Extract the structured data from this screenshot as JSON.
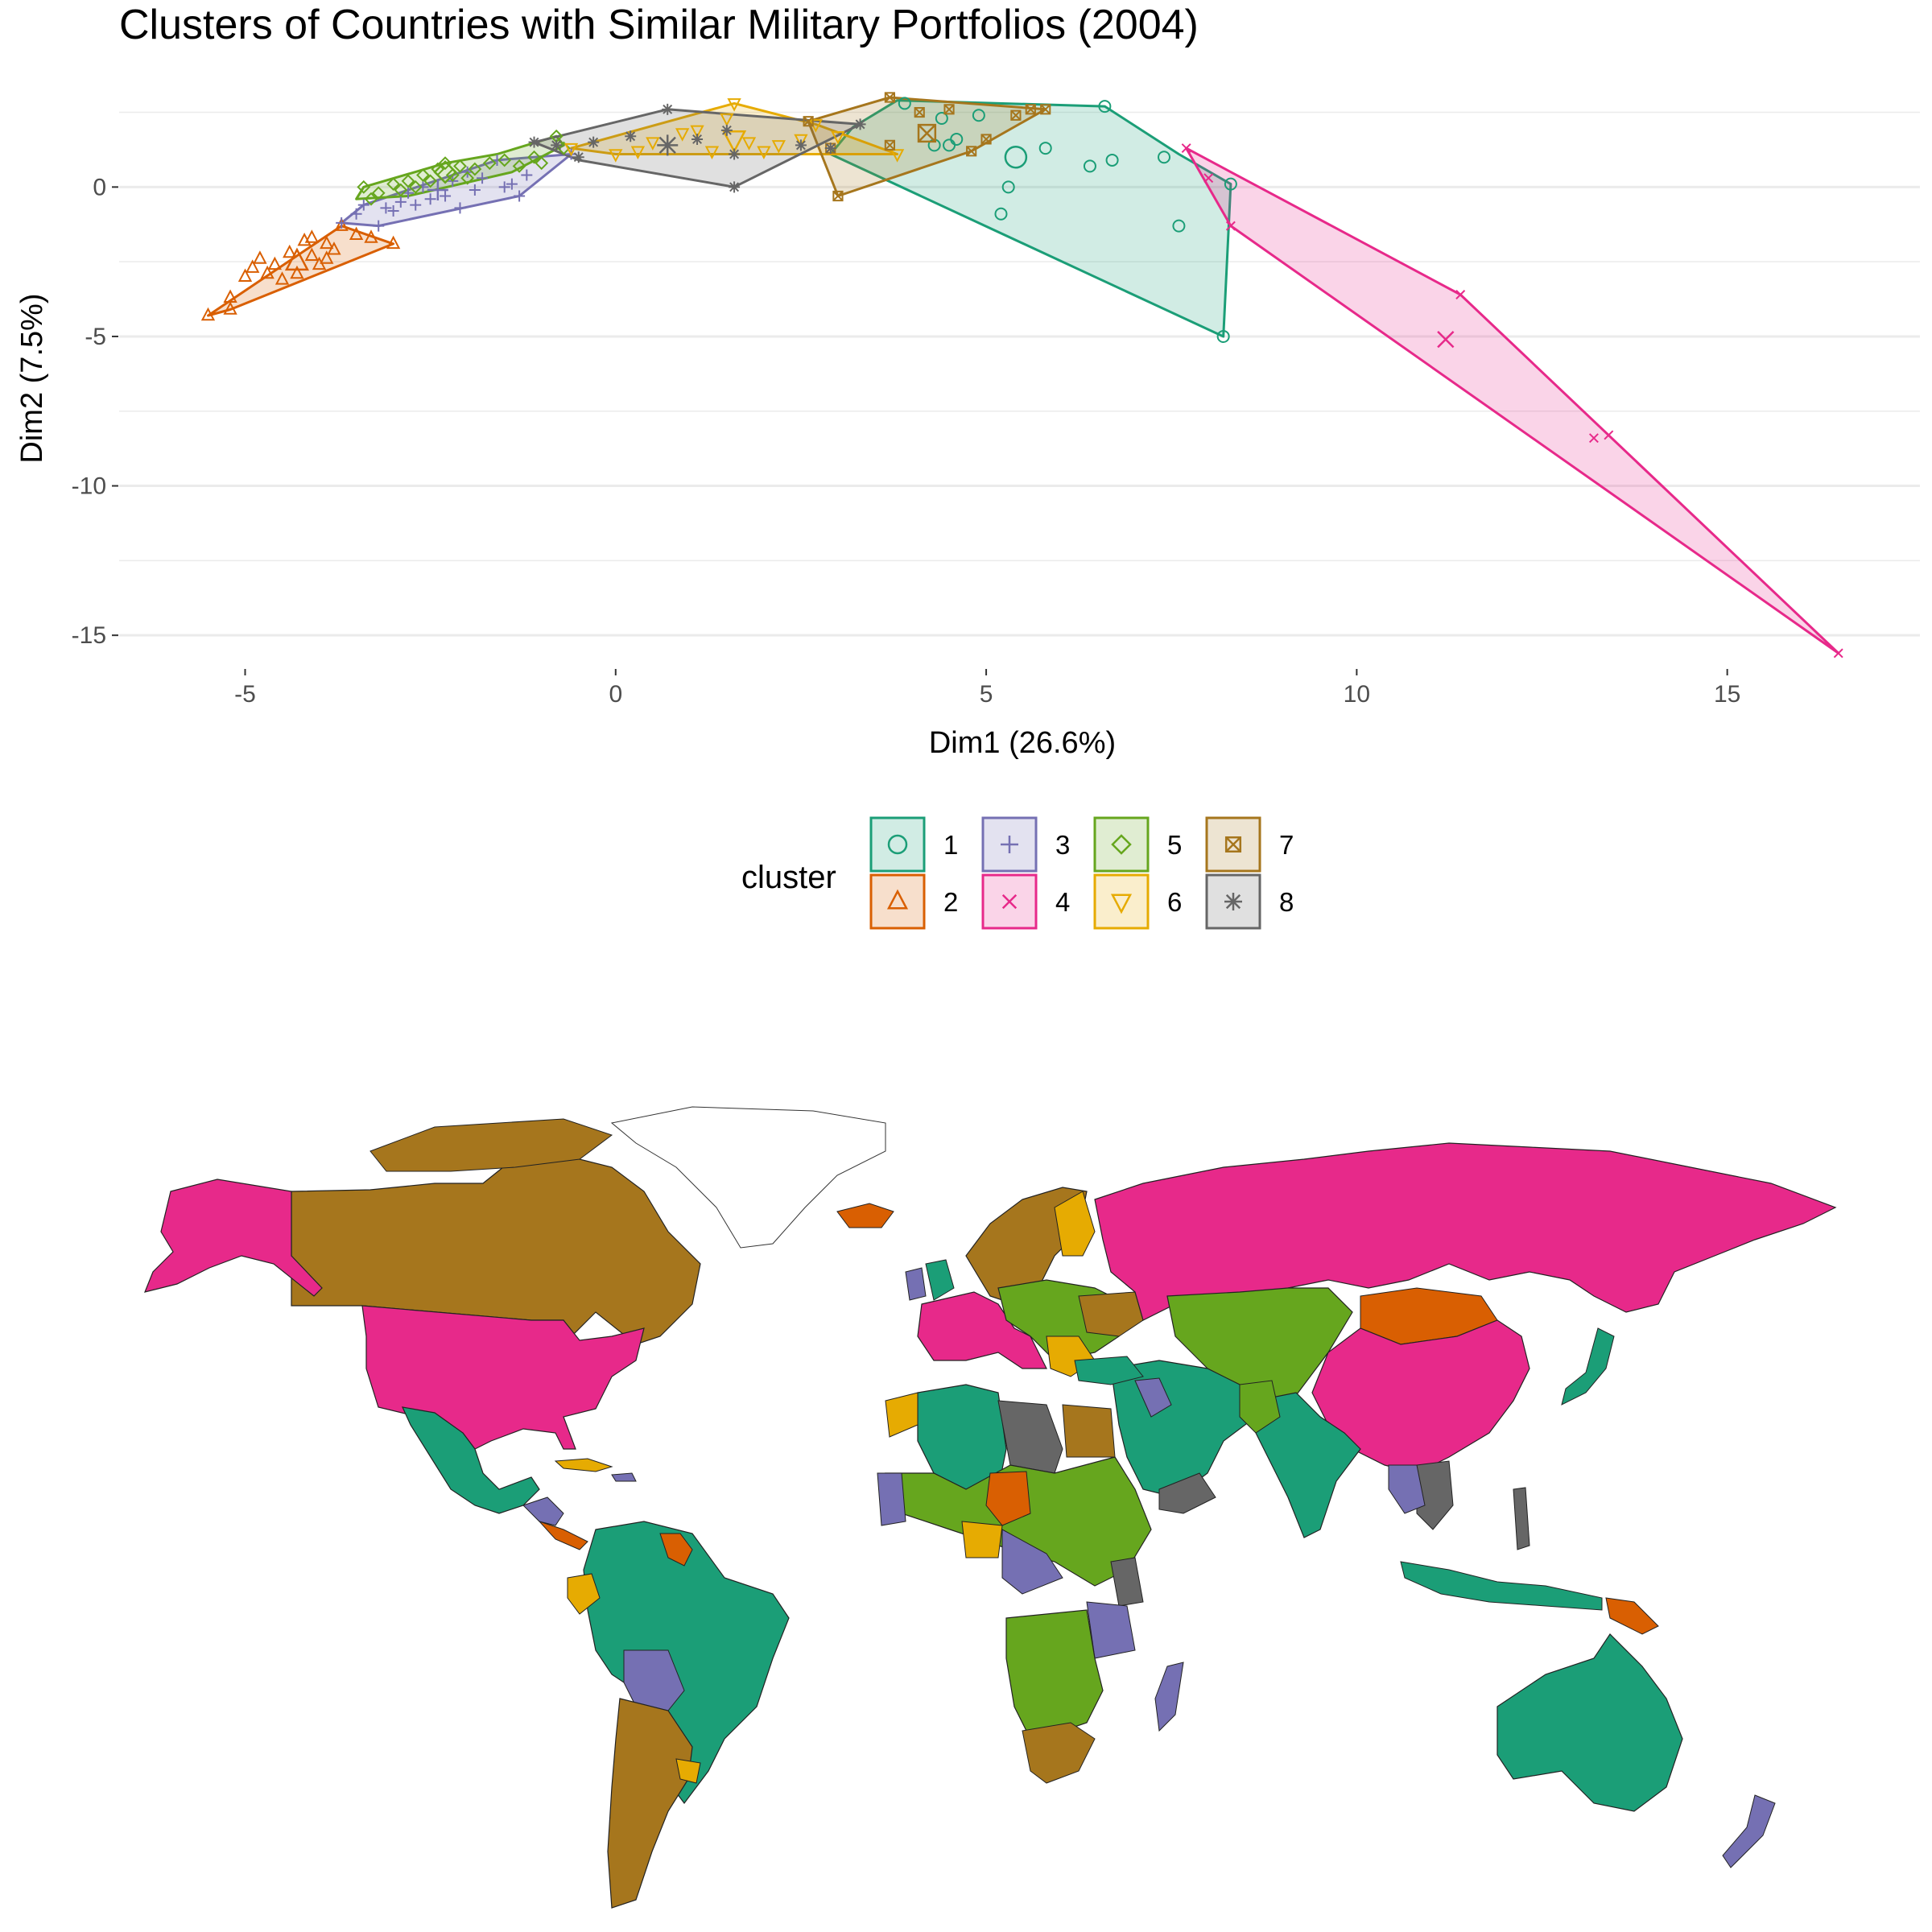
{
  "colors": {
    "1": "#1b9e77",
    "2": "#d95f02",
    "3": "#7570b3",
    "4": "#e7298a",
    "5": "#66a61e",
    "6": "#e6ab02",
    "7": "#a6761d",
    "8": "#666666"
  },
  "chart_data": [
    {
      "type": "scatter",
      "title": "Clusters of Countries with Similar Military Portfolios (2004)",
      "xlabel": "Dim1 (26.6%)",
      "ylabel": "Dim2 (7.5%)",
      "xlim": [
        -6.7,
        17.6
      ],
      "ylim": [
        -16.1,
        3.7
      ],
      "xticks": [
        -5,
        0,
        5,
        10,
        15
      ],
      "yticks": [
        0,
        -5,
        -10,
        -15
      ],
      "grid": true,
      "legend": {
        "title": "cluster",
        "position": "bottom",
        "entries": [
          {
            "label": "1",
            "cluster": "1",
            "shape": "circle"
          },
          {
            "label": "2",
            "cluster": "2",
            "shape": "triangle-up"
          },
          {
            "label": "3",
            "cluster": "3",
            "shape": "plus"
          },
          {
            "label": "4",
            "cluster": "4",
            "shape": "cross"
          },
          {
            "label": "5",
            "cluster": "5",
            "shape": "diamond"
          },
          {
            "label": "6",
            "cluster": "6",
            "shape": "triangle-down"
          },
          {
            "label": "7",
            "cluster": "7",
            "shape": "square-cross"
          },
          {
            "label": "8",
            "cluster": "8",
            "shape": "asterisk"
          }
        ]
      },
      "series": [
        {
          "name": "1",
          "cluster": "1",
          "shape": "circle",
          "hull": [
            [
              3.2,
              2.0
            ],
            [
              3.8,
              2.9
            ],
            [
              6.6,
              2.7
            ],
            [
              7.6,
              1.1
            ],
            [
              8.3,
              0.1
            ],
            [
              8.2,
              -5.0
            ],
            [
              2.9,
              1.1
            ]
          ],
          "points": [
            [
              6.6,
              2.7
            ],
            [
              3.9,
              2.8
            ],
            [
              4.4,
              2.3
            ],
            [
              4.3,
              1.4
            ],
            [
              4.5,
              1.4
            ],
            [
              4.6,
              1.6
            ],
            [
              4.9,
              2.4
            ],
            [
              5.3,
              0.0
            ],
            [
              5.2,
              -0.9
            ],
            [
              5.8,
              1.3
            ],
            [
              6.4,
              0.7
            ],
            [
              6.7,
              0.9
            ],
            [
              7.4,
              1.0
            ],
            [
              7.6,
              -1.3
            ],
            [
              8.2,
              -5.0
            ],
            [
              8.3,
              0.1
            ]
          ],
          "centroid": [
            5.4,
            1.0
          ]
        },
        {
          "name": "2",
          "cluster": "2",
          "shape": "triangle-up",
          "hull": [
            [
              -5.5,
              -4.3
            ],
            [
              -3.7,
              -1.3
            ],
            [
              -3.0,
              -1.9
            ],
            [
              -5.2,
              -4.1
            ]
          ],
          "points": [
            [
              -5.5,
              -4.3
            ],
            [
              -5.2,
              -4.1
            ],
            [
              -5.2,
              -3.7
            ],
            [
              -5.0,
              -3.0
            ],
            [
              -4.9,
              -2.7
            ],
            [
              -4.8,
              -2.4
            ],
            [
              -4.7,
              -2.9
            ],
            [
              -4.6,
              -2.6
            ],
            [
              -4.5,
              -3.1
            ],
            [
              -4.4,
              -2.2
            ],
            [
              -4.3,
              -2.9
            ],
            [
              -4.2,
              -1.8
            ],
            [
              -4.1,
              -2.3
            ],
            [
              -4.1,
              -1.7
            ],
            [
              -4.0,
              -2.6
            ],
            [
              -3.9,
              -2.4
            ],
            [
              -3.9,
              -1.9
            ],
            [
              -3.8,
              -2.1
            ],
            [
              -3.7,
              -1.3
            ],
            [
              -3.5,
              -1.6
            ],
            [
              -3.3,
              -1.7
            ],
            [
              -3.0,
              -1.9
            ]
          ],
          "centroid": [
            -4.3,
            -2.5
          ]
        },
        {
          "name": "3",
          "cluster": "3",
          "shape": "plus",
          "hull": [
            [
              -3.7,
              -1.2
            ],
            [
              -3.4,
              -0.6
            ],
            [
              -1.6,
              0.9
            ],
            [
              -0.6,
              1.1
            ],
            [
              -1.3,
              -0.3
            ],
            [
              -3.2,
              -1.3
            ]
          ],
          "points": [
            [
              -3.7,
              -1.2
            ],
            [
              -3.5,
              -0.9
            ],
            [
              -3.4,
              -0.6
            ],
            [
              -3.2,
              -1.3
            ],
            [
              -3.1,
              -0.7
            ],
            [
              -3.0,
              -0.8
            ],
            [
              -2.9,
              -0.5
            ],
            [
              -2.8,
              -0.2
            ],
            [
              -2.7,
              -0.6
            ],
            [
              -2.6,
              0.0
            ],
            [
              -2.5,
              -0.4
            ],
            [
              -2.3,
              -0.3
            ],
            [
              -2.2,
              0.2
            ],
            [
              -2.1,
              -0.7
            ],
            [
              -2.0,
              0.5
            ],
            [
              -1.9,
              -0.1
            ],
            [
              -1.8,
              0.3
            ],
            [
              -1.6,
              0.9
            ],
            [
              -1.5,
              0.0
            ],
            [
              -1.4,
              0.1
            ],
            [
              -1.3,
              -0.3
            ],
            [
              -1.2,
              0.4
            ],
            [
              -0.6,
              1.1
            ]
          ],
          "centroid": [
            -2.4,
            -0.1
          ]
        },
        {
          "name": "4",
          "cluster": "4",
          "shape": "cross",
          "hull": [
            [
              7.7,
              1.3
            ],
            [
              11.4,
              -3.6
            ],
            [
              16.5,
              -15.6
            ],
            [
              8.3,
              -1.3
            ]
          ],
          "points": [
            [
              7.7,
              1.3
            ],
            [
              8.0,
              0.3
            ],
            [
              8.3,
              -1.3
            ],
            [
              11.4,
              -3.6
            ],
            [
              13.2,
              -8.4
            ],
            [
              13.4,
              -8.3
            ],
            [
              16.5,
              -15.6
            ]
          ],
          "centroid": [
            11.2,
            -5.1
          ]
        },
        {
          "name": "5",
          "cluster": "5",
          "shape": "diamond",
          "hull": [
            [
              -3.5,
              -0.4
            ],
            [
              -3.4,
              0.0
            ],
            [
              -2.3,
              0.8
            ],
            [
              -1.6,
              1.1
            ],
            [
              -0.8,
              1.7
            ],
            [
              -0.7,
              1.4
            ],
            [
              -1.4,
              0.5
            ],
            [
              -2.8,
              -0.3
            ]
          ],
          "points": [
            [
              -3.4,
              0.0
            ],
            [
              -3.3,
              -0.4
            ],
            [
              -3.2,
              -0.2
            ],
            [
              -3.0,
              0.1
            ],
            [
              -2.9,
              -0.1
            ],
            [
              -2.8,
              0.2
            ],
            [
              -2.7,
              0.0
            ],
            [
              -2.6,
              0.4
            ],
            [
              -2.5,
              0.2
            ],
            [
              -2.4,
              0.6
            ],
            [
              -2.3,
              0.8
            ],
            [
              -2.2,
              0.4
            ],
            [
              -2.1,
              0.7
            ],
            [
              -2.0,
              0.3
            ],
            [
              -1.9,
              0.6
            ],
            [
              -1.7,
              0.8
            ],
            [
              -1.5,
              0.9
            ],
            [
              -1.3,
              0.7
            ],
            [
              -1.1,
              1.0
            ],
            [
              -1.0,
              0.8
            ],
            [
              -0.8,
              1.7
            ],
            [
              -0.7,
              1.3
            ]
          ],
          "centroid": [
            -2.3,
            0.5
          ]
        },
        {
          "name": "6",
          "cluster": "6",
          "shape": "triangle-down",
          "hull": [
            [
              -0.6,
              1.3
            ],
            [
              1.6,
              2.8
            ],
            [
              2.7,
              2.1
            ],
            [
              3.8,
              1.1
            ],
            [
              0.0,
              1.1
            ]
          ],
          "points": [
            [
              -0.6,
              1.3
            ],
            [
              0.0,
              1.1
            ],
            [
              0.3,
              1.2
            ],
            [
              0.5,
              1.5
            ],
            [
              0.9,
              1.8
            ],
            [
              1.1,
              1.9
            ],
            [
              1.3,
              1.2
            ],
            [
              1.5,
              2.3
            ],
            [
              1.6,
              2.8
            ],
            [
              1.8,
              1.5
            ],
            [
              2.0,
              1.2
            ],
            [
              2.2,
              1.4
            ],
            [
              2.5,
              1.6
            ],
            [
              2.7,
              2.1
            ],
            [
              3.0,
              1.7
            ],
            [
              3.8,
              1.1
            ]
          ],
          "centroid": [
            1.6,
            1.6
          ]
        },
        {
          "name": "7",
          "cluster": "7",
          "shape": "square-cross",
          "hull": [
            [
              2.6,
              2.2
            ],
            [
              3.7,
              3.0
            ],
            [
              5.8,
              2.6
            ],
            [
              4.8,
              1.2
            ],
            [
              3.0,
              -0.3
            ]
          ],
          "points": [
            [
              2.6,
              2.2
            ],
            [
              2.9,
              1.3
            ],
            [
              3.0,
              -0.3
            ],
            [
              3.7,
              3.0
            ],
            [
              3.7,
              1.4
            ],
            [
              4.1,
              2.5
            ],
            [
              4.5,
              2.6
            ],
            [
              4.8,
              1.2
            ],
            [
              5.0,
              1.6
            ],
            [
              5.4,
              2.4
            ],
            [
              5.6,
              2.6
            ],
            [
              5.8,
              2.6
            ]
          ],
          "centroid": [
            4.2,
            1.8
          ]
        },
        {
          "name": "8",
          "cluster": "8",
          "shape": "asterisk",
          "hull": [
            [
              -1.1,
              1.5
            ],
            [
              0.7,
              2.6
            ],
            [
              3.3,
              2.1
            ],
            [
              1.6,
              0.0
            ],
            [
              -0.5,
              0.9
            ]
          ],
          "points": [
            [
              -1.1,
              1.5
            ],
            [
              -0.8,
              1.4
            ],
            [
              -0.5,
              1.0
            ],
            [
              -0.3,
              1.5
            ],
            [
              0.2,
              1.7
            ],
            [
              0.7,
              2.6
            ],
            [
              1.1,
              1.6
            ],
            [
              1.5,
              1.9
            ],
            [
              1.6,
              0.0
            ],
            [
              1.6,
              1.1
            ],
            [
              2.5,
              1.4
            ],
            [
              2.9,
              1.3
            ],
            [
              3.3,
              2.1
            ]
          ],
          "centroid": [
            0.7,
            1.4
          ]
        }
      ]
    },
    {
      "type": "map",
      "legend": "shared",
      "regions": [
        {
          "name": "Alaska",
          "cluster": "4"
        },
        {
          "name": "Canada",
          "cluster": "7"
        },
        {
          "name": "Greenland",
          "cluster": ""
        },
        {
          "name": "United States",
          "cluster": "4"
        },
        {
          "name": "Mexico",
          "cluster": "1"
        },
        {
          "name": "Central America",
          "cluster": "3"
        },
        {
          "name": "Caribbean",
          "cluster": "6"
        },
        {
          "name": "Venezuela / Guyana",
          "cluster": "2"
        },
        {
          "name": "Brazil",
          "cluster": "1"
        },
        {
          "name": "Bolivia",
          "cluster": "3"
        },
        {
          "name": "Argentina",
          "cluster": "7"
        },
        {
          "name": "Uruguay",
          "cluster": "6"
        },
        {
          "name": "Iceland",
          "cluster": "2"
        },
        {
          "name": "Scandinavia",
          "cluster": "7"
        },
        {
          "name": "Western Europe",
          "cluster": "4"
        },
        {
          "name": "Central Europe",
          "cluster": "5"
        },
        {
          "name": "Russia",
          "cluster": "4"
        },
        {
          "name": "Central Asia",
          "cluster": "5"
        },
        {
          "name": "Mongolia",
          "cluster": "2"
        },
        {
          "name": "China",
          "cluster": "4"
        },
        {
          "name": "Middle East",
          "cluster": "1"
        },
        {
          "name": "Libya",
          "cluster": "8"
        },
        {
          "name": "Egypt",
          "cluster": "7"
        },
        {
          "name": "Algeria",
          "cluster": "1"
        },
        {
          "name": "Sahel",
          "cluster": "5"
        },
        {
          "name": "Chad",
          "cluster": "2"
        },
        {
          "name": "West Africa",
          "cluster": "3"
        },
        {
          "name": "Southern Africa",
          "cluster": "5"
        },
        {
          "name": "South Africa",
          "cluster": "7"
        },
        {
          "name": "Madagascar",
          "cluster": "3"
        },
        {
          "name": "India",
          "cluster": "1"
        },
        {
          "name": "Southeast Asia",
          "cluster": "8"
        },
        {
          "name": "Japan",
          "cluster": "1"
        },
        {
          "name": "Indonesia",
          "cluster": "1"
        },
        {
          "name": "Papua New Guinea",
          "cluster": "2"
        },
        {
          "name": "Australia",
          "cluster": "1"
        },
        {
          "name": "New Zealand",
          "cluster": "3"
        }
      ]
    }
  ]
}
